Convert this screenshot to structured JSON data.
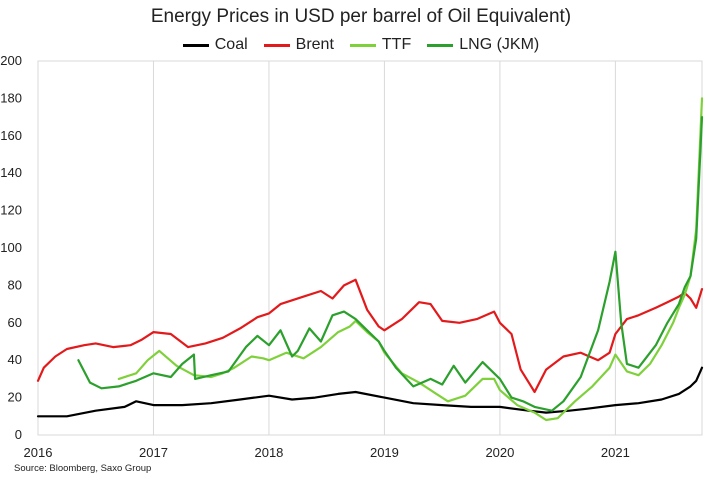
{
  "chart_data": {
    "type": "line",
    "title": "Energy Prices in USD per barrel of Oil Equivalent)",
    "xlabel": "",
    "ylabel": "",
    "xlim": [
      2016.0,
      2021.75
    ],
    "ylim": [
      0,
      200
    ],
    "y_ticks": [
      0,
      20,
      40,
      60,
      80,
      100,
      120,
      140,
      160,
      180,
      200
    ],
    "x_ticks": [
      {
        "label": "2016",
        "value": 2016
      },
      {
        "label": "2017",
        "value": 2017
      },
      {
        "label": "2018",
        "value": 2018
      },
      {
        "label": "2019",
        "value": 2019
      },
      {
        "label": "2020",
        "value": 2020
      },
      {
        "label": "2021",
        "value": 2021
      }
    ],
    "grid": "vertical",
    "legend_position": "top",
    "series": [
      {
        "name": "Coal",
        "color": "#000000",
        "x": [
          2016.0,
          2016.25,
          2016.5,
          2016.75,
          2016.85,
          2017.0,
          2017.25,
          2017.5,
          2017.75,
          2018.0,
          2018.2,
          2018.4,
          2018.6,
          2018.75,
          2019.0,
          2019.25,
          2019.5,
          2019.75,
          2020.0,
          2020.25,
          2020.4,
          2020.6,
          2020.75,
          2021.0,
          2021.2,
          2021.4,
          2021.55,
          2021.65,
          2021.7,
          2021.75
        ],
        "y": [
          10,
          10,
          13,
          15,
          18,
          16,
          16,
          17,
          19,
          21,
          19,
          20,
          22,
          23,
          20,
          17,
          16,
          15,
          15,
          13,
          12,
          13,
          14,
          16,
          17,
          19,
          22,
          26,
          29,
          36
        ]
      },
      {
        "name": "Brent",
        "color": "#e31a1c",
        "x": [
          2016.0,
          2016.05,
          2016.15,
          2016.25,
          2016.4,
          2016.5,
          2016.65,
          2016.8,
          2016.9,
          2017.0,
          2017.15,
          2017.3,
          2017.45,
          2017.6,
          2017.75,
          2017.9,
          2018.0,
          2018.1,
          2018.3,
          2018.45,
          2018.55,
          2018.65,
          2018.75,
          2018.85,
          2018.95,
          2019.0,
          2019.15,
          2019.3,
          2019.4,
          2019.5,
          2019.65,
          2019.8,
          2019.95,
          2020.0,
          2020.1,
          2020.18,
          2020.25,
          2020.3,
          2020.4,
          2020.55,
          2020.7,
          2020.85,
          2020.95,
          2021.0,
          2021.1,
          2021.2,
          2021.35,
          2021.45,
          2021.55,
          2021.6,
          2021.65,
          2021.7,
          2021.75
        ],
        "y": [
          29,
          36,
          42,
          46,
          48,
          49,
          47,
          48,
          51,
          55,
          54,
          47,
          49,
          52,
          57,
          63,
          65,
          70,
          74,
          77,
          73,
          80,
          83,
          67,
          58,
          56,
          62,
          71,
          70,
          61,
          60,
          62,
          66,
          60,
          54,
          35,
          28,
          23,
          35,
          42,
          44,
          40,
          44,
          54,
          62,
          64,
          68,
          71,
          74,
          76,
          73,
          68,
          78
        ]
      },
      {
        "name": "TTF",
        "color": "#7fd13b",
        "x": [
          2016.7,
          2016.85,
          2016.95,
          2017.05,
          2017.2,
          2017.35,
          2017.5,
          2017.6,
          2017.7,
          2017.85,
          2017.95,
          2018.0,
          2018.15,
          2018.3,
          2018.45,
          2018.6,
          2018.7,
          2018.75,
          2018.85,
          2018.95,
          2019.0,
          2019.15,
          2019.3,
          2019.45,
          2019.55,
          2019.7,
          2019.85,
          2019.95,
          2020.0,
          2020.15,
          2020.3,
          2020.4,
          2020.5,
          2020.65,
          2020.8,
          2020.95,
          2021.0,
          2021.1,
          2021.2,
          2021.3,
          2021.4,
          2021.5,
          2021.55,
          2021.6,
          2021.65,
          2021.7,
          2021.75
        ],
        "y": [
          30,
          33,
          40,
          45,
          37,
          32,
          31,
          33,
          36,
          42,
          41,
          40,
          44,
          41,
          47,
          55,
          58,
          61,
          55,
          50,
          44,
          33,
          28,
          22,
          18,
          21,
          30,
          30,
          24,
          16,
          12,
          8,
          9,
          18,
          26,
          36,
          43,
          34,
          32,
          38,
          48,
          60,
          68,
          75,
          85,
          110,
          180
        ]
      },
      {
        "name": "LNG (JKM)",
        "color": "#2ca02c",
        "x": [
          2016.35,
          2016.45,
          2016.55,
          2016.7,
          2016.85,
          2017.0,
          2017.15,
          2017.25,
          2017.35,
          2017.36,
          2017.5,
          2017.65,
          2017.8,
          2017.9,
          2018.0,
          2018.1,
          2018.2,
          2018.25,
          2018.35,
          2018.45,
          2018.55,
          2018.65,
          2018.75,
          2018.85,
          2018.95,
          2019.0,
          2019.1,
          2019.25,
          2019.4,
          2019.5,
          2019.6,
          2019.7,
          2019.85,
          2020.0,
          2020.1,
          2020.2,
          2020.3,
          2020.45,
          2020.55,
          2020.7,
          2020.85,
          2020.95,
          2021.0,
          2021.05,
          2021.1,
          2021.2,
          2021.35,
          2021.45,
          2021.55,
          2021.6,
          2021.65,
          2021.7,
          2021.75
        ],
        "y": [
          40,
          28,
          25,
          26,
          29,
          33,
          31,
          38,
          43,
          30,
          32,
          34,
          47,
          53,
          48,
          56,
          42,
          45,
          57,
          50,
          64,
          66,
          62,
          56,
          50,
          45,
          36,
          26,
          30,
          27,
          37,
          28,
          39,
          30,
          20,
          18,
          15,
          13,
          18,
          31,
          56,
          82,
          98,
          60,
          38,
          36,
          48,
          60,
          70,
          79,
          85,
          105,
          170
        ]
      }
    ]
  },
  "source": "Source: Bloomberg, Saxo Group"
}
